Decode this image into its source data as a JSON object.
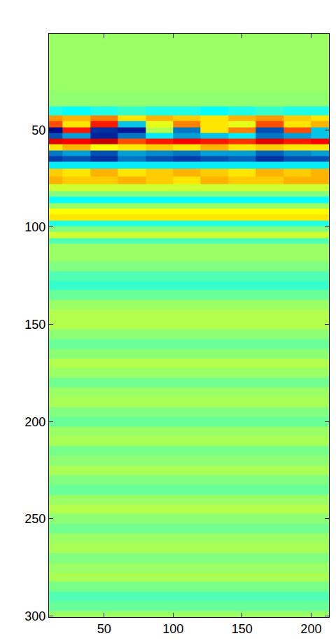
{
  "chart_data": {
    "type": "heatmap",
    "color": "Jet",
    "zlim": [
      -1,
      1
    ],
    "x": [
      10,
      30,
      50,
      70,
      90,
      110,
      130,
      150,
      170,
      190,
      210
    ],
    "y": [
      5,
      15,
      25,
      35,
      41,
      44,
      47,
      50,
      53,
      56,
      59,
      62,
      65,
      68,
      72,
      76,
      80,
      83,
      86,
      89,
      92,
      95,
      98,
      101,
      104,
      107,
      110,
      115,
      120,
      125,
      130,
      135,
      140,
      145,
      150,
      155,
      160,
      165,
      170,
      175,
      180,
      185,
      190,
      195,
      200,
      205,
      210,
      215,
      220,
      225,
      230,
      235,
      240,
      245,
      250,
      255,
      260,
      265,
      270,
      275,
      280,
      285,
      290,
      295,
      300
    ],
    "cells": [
      [
        0.05,
        0.05,
        0.05,
        0.05,
        0.05,
        0.05,
        0.05,
        0.05,
        0.05,
        0.05,
        0.05
      ],
      [
        0.05,
        0.05,
        0.05,
        0.05,
        0.05,
        0.05,
        0.05,
        0.05,
        0.05,
        0.05,
        0.05
      ],
      [
        0.05,
        0.05,
        0.05,
        0.05,
        0.05,
        0.05,
        0.05,
        0.05,
        0.05,
        0.05,
        0.05
      ],
      [
        0.03,
        0.03,
        0.03,
        0.03,
        0.03,
        0.03,
        0.03,
        0.03,
        0.03,
        0.03,
        0.03
      ],
      [
        -0.2,
        -0.25,
        -0.2,
        -0.15,
        -0.2,
        -0.2,
        -0.25,
        -0.2,
        -0.15,
        -0.2,
        -0.2
      ],
      [
        0.45,
        0.4,
        0.5,
        0.3,
        0.4,
        0.35,
        0.3,
        0.4,
        0.45,
        0.35,
        0.3
      ],
      [
        0.6,
        0.3,
        0.7,
        -0.4,
        0.2,
        0.5,
        0.3,
        0.2,
        0.6,
        0.3,
        0.4
      ],
      [
        -0.95,
        0.7,
        -0.8,
        -0.9,
        0.1,
        -0.6,
        0.3,
        0.5,
        -0.7,
        0.6,
        -0.4
      ],
      [
        -0.7,
        -0.5,
        -0.85,
        -0.6,
        -0.3,
        -0.5,
        -0.4,
        -0.3,
        -0.6,
        -0.5,
        -0.4
      ],
      [
        0.8,
        0.75,
        0.85,
        0.6,
        0.7,
        0.75,
        0.7,
        0.65,
        0.8,
        0.7,
        0.75
      ],
      [
        0.3,
        0.4,
        0.25,
        0.3,
        0.35,
        0.3,
        0.4,
        0.3,
        0.35,
        0.3,
        0.3
      ],
      [
        -0.6,
        -0.5,
        -0.7,
        -0.5,
        -0.55,
        -0.6,
        -0.5,
        -0.5,
        -0.65,
        -0.55,
        -0.5
      ],
      [
        -0.75,
        -0.7,
        -0.8,
        -0.6,
        -0.7,
        -0.75,
        -0.7,
        -0.65,
        -0.8,
        -0.7,
        -0.7
      ],
      [
        -0.3,
        -0.3,
        -0.3,
        -0.3,
        -0.3,
        -0.3,
        -0.3,
        -0.3,
        -0.3,
        -0.3,
        -0.3
      ],
      [
        0.35,
        0.3,
        0.4,
        0.3,
        0.35,
        0.4,
        0.35,
        0.3,
        0.4,
        0.35,
        0.4
      ],
      [
        0.4,
        0.35,
        0.35,
        0.4,
        0.35,
        0.3,
        0.4,
        0.35,
        0.35,
        0.4,
        0.4
      ],
      [
        0.15,
        0.15,
        0.15,
        0.15,
        0.15,
        0.15,
        0.15,
        0.15,
        0.15,
        0.15,
        0.15
      ],
      [
        0.0,
        0.0,
        0.0,
        0.0,
        0.0,
        0.0,
        0.0,
        0.0,
        0.0,
        0.0,
        0.0
      ],
      [
        -0.25,
        -0.25,
        -0.25,
        -0.25,
        -0.25,
        -0.25,
        -0.25,
        -0.25,
        -0.25,
        -0.25,
        -0.25
      ],
      [
        0.05,
        0.05,
        0.05,
        0.05,
        0.05,
        0.05,
        0.05,
        0.05,
        0.05,
        0.05,
        0.05
      ],
      [
        0.25,
        0.25,
        0.25,
        0.25,
        0.25,
        0.25,
        0.25,
        0.25,
        0.25,
        0.25,
        0.25
      ],
      [
        0.3,
        0.3,
        0.3,
        0.3,
        0.3,
        0.3,
        0.3,
        0.3,
        0.3,
        0.3,
        0.3
      ],
      [
        -0.2,
        -0.2,
        -0.2,
        -0.2,
        -0.2,
        -0.2,
        -0.2,
        -0.2,
        -0.2,
        -0.2,
        -0.2
      ],
      [
        0.0,
        0.0,
        0.0,
        0.0,
        0.0,
        0.0,
        0.0,
        0.0,
        0.0,
        0.0,
        0.0
      ],
      [
        0.15,
        0.15,
        0.15,
        0.15,
        0.15,
        0.15,
        0.15,
        0.15,
        0.15,
        0.15,
        0.15
      ],
      [
        -0.1,
        -0.1,
        -0.1,
        -0.1,
        -0.1,
        -0.1,
        -0.1,
        -0.1,
        -0.1,
        -0.1,
        -0.1
      ],
      [
        0.05,
        0.05,
        0.05,
        0.05,
        0.05,
        0.05,
        0.05,
        0.05,
        0.05,
        0.05,
        0.05
      ],
      [
        0.05,
        0.05,
        0.05,
        0.05,
        0.05,
        0.05,
        0.05,
        0.05,
        0.05,
        0.05,
        0.05
      ],
      [
        0.0,
        0.0,
        0.0,
        0.0,
        0.0,
        0.0,
        0.0,
        0.0,
        0.0,
        0.0,
        0.0
      ],
      [
        -0.1,
        -0.1,
        -0.1,
        -0.1,
        -0.1,
        -0.1,
        -0.1,
        -0.1,
        -0.1,
        -0.1,
        -0.1
      ],
      [
        -0.15,
        -0.15,
        -0.15,
        -0.15,
        -0.15,
        -0.15,
        -0.15,
        -0.15,
        -0.15,
        -0.15,
        -0.15
      ],
      [
        -0.05,
        -0.05,
        -0.05,
        -0.05,
        -0.05,
        -0.05,
        -0.05,
        -0.05,
        -0.05,
        -0.05,
        -0.05
      ],
      [
        0.05,
        0.05,
        0.05,
        0.05,
        0.05,
        0.05,
        0.05,
        0.05,
        0.05,
        0.05,
        0.05
      ],
      [
        0.1,
        0.1,
        0.1,
        0.1,
        0.1,
        0.1,
        0.1,
        0.1,
        0.1,
        0.1,
        0.1
      ],
      [
        0.1,
        0.1,
        0.1,
        0.1,
        0.1,
        0.1,
        0.1,
        0.1,
        0.1,
        0.1,
        0.1
      ],
      [
        0.02,
        0.02,
        0.02,
        0.02,
        0.02,
        0.02,
        0.02,
        0.02,
        0.02,
        0.02,
        0.02
      ],
      [
        -0.05,
        -0.05,
        -0.05,
        -0.05,
        -0.05,
        -0.05,
        -0.05,
        -0.05,
        -0.05,
        -0.05,
        -0.05
      ],
      [
        0.02,
        0.02,
        0.02,
        0.02,
        0.02,
        0.02,
        0.02,
        0.02,
        0.02,
        0.02,
        0.02
      ],
      [
        0.1,
        0.1,
        0.1,
        0.1,
        0.1,
        0.1,
        0.1,
        0.1,
        0.1,
        0.1,
        0.1
      ],
      [
        0.05,
        0.05,
        0.05,
        0.05,
        0.05,
        0.05,
        0.05,
        0.05,
        0.05,
        0.05,
        0.05
      ],
      [
        -0.03,
        -0.03,
        -0.03,
        -0.03,
        -0.03,
        -0.03,
        -0.03,
        -0.03,
        -0.03,
        -0.03,
        -0.03
      ],
      [
        0.05,
        0.05,
        0.05,
        0.05,
        0.05,
        0.05,
        0.05,
        0.05,
        0.05,
        0.05,
        0.05
      ],
      [
        0.08,
        0.08,
        0.08,
        0.08,
        0.08,
        0.08,
        0.08,
        0.08,
        0.08,
        0.08,
        0.08
      ],
      [
        0.0,
        0.0,
        0.0,
        0.0,
        0.0,
        0.0,
        0.0,
        0.0,
        0.0,
        0.0,
        0.0
      ],
      [
        -0.05,
        -0.05,
        -0.05,
        -0.05,
        -0.05,
        -0.05,
        -0.05,
        -0.05,
        -0.05,
        -0.05,
        -0.05
      ],
      [
        0.05,
        0.05,
        0.05,
        0.05,
        0.05,
        0.05,
        0.05,
        0.05,
        0.05,
        0.05,
        0.05
      ],
      [
        0.08,
        0.08,
        0.08,
        0.08,
        0.08,
        0.08,
        0.08,
        0.08,
        0.08,
        0.08,
        0.08
      ],
      [
        -0.02,
        -0.02,
        -0.02,
        -0.02,
        -0.02,
        -0.02,
        -0.02,
        -0.02,
        -0.02,
        -0.02,
        -0.02
      ],
      [
        0.02,
        0.02,
        0.02,
        0.02,
        0.02,
        0.02,
        0.02,
        0.02,
        0.02,
        0.02,
        0.02
      ],
      [
        0.08,
        0.08,
        0.08,
        0.08,
        0.08,
        0.08,
        0.08,
        0.08,
        0.08,
        0.08,
        0.08
      ],
      [
        0.0,
        0.0,
        0.0,
        0.0,
        0.0,
        0.0,
        0.0,
        0.0,
        0.0,
        0.0,
        0.0
      ],
      [
        -0.05,
        -0.05,
        -0.05,
        -0.05,
        -0.05,
        -0.05,
        -0.05,
        -0.05,
        -0.05,
        -0.05,
        -0.05
      ],
      [
        0.05,
        0.05,
        0.05,
        0.05,
        0.05,
        0.05,
        0.05,
        0.05,
        0.05,
        0.05,
        0.05
      ],
      [
        0.1,
        0.1,
        0.1,
        0.1,
        0.1,
        0.1,
        0.1,
        0.1,
        0.1,
        0.1,
        0.1
      ],
      [
        0.02,
        0.02,
        0.02,
        0.02,
        0.02,
        0.02,
        0.02,
        0.02,
        0.02,
        0.02,
        0.02
      ],
      [
        -0.03,
        -0.03,
        -0.03,
        -0.03,
        -0.03,
        -0.03,
        -0.03,
        -0.03,
        -0.03,
        -0.03,
        -0.03
      ],
      [
        0.05,
        0.05,
        0.05,
        0.05,
        0.05,
        0.05,
        0.05,
        0.05,
        0.05,
        0.05,
        0.05
      ],
      [
        0.08,
        0.08,
        0.08,
        0.08,
        0.08,
        0.08,
        0.08,
        0.08,
        0.08,
        0.08,
        0.08
      ],
      [
        0.0,
        0.0,
        0.0,
        0.0,
        0.0,
        0.0,
        0.0,
        0.0,
        0.0,
        0.0,
        0.0
      ],
      [
        0.05,
        0.05,
        0.05,
        0.05,
        0.05,
        0.05,
        0.05,
        0.05,
        0.05,
        0.05,
        0.05
      ],
      [
        0.08,
        0.08,
        0.08,
        0.08,
        0.08,
        0.08,
        0.08,
        0.08,
        0.08,
        0.08,
        0.08
      ],
      [
        -0.02,
        -0.02,
        -0.02,
        -0.02,
        -0.02,
        -0.02,
        -0.02,
        -0.02,
        -0.02,
        -0.02,
        -0.02
      ],
      [
        -0.1,
        -0.1,
        -0.1,
        -0.1,
        -0.1,
        -0.1,
        -0.1,
        -0.1,
        -0.1,
        -0.1,
        -0.1
      ],
      [
        -0.05,
        -0.05,
        -0.05,
        -0.05,
        -0.05,
        -0.05,
        -0.05,
        -0.05,
        -0.05,
        -0.05,
        -0.05
      ],
      [
        0.05,
        0.05,
        0.05,
        0.05,
        0.05,
        0.05,
        0.05,
        0.05,
        0.05,
        0.05,
        0.05
      ]
    ],
    "xlim": [
      10,
      213
    ],
    "ylim": [
      300.5,
      0.5
    ],
    "xticks": [
      50,
      100,
      150,
      200
    ],
    "yticks": [
      50,
      100,
      150,
      200,
      250,
      300
    ]
  }
}
